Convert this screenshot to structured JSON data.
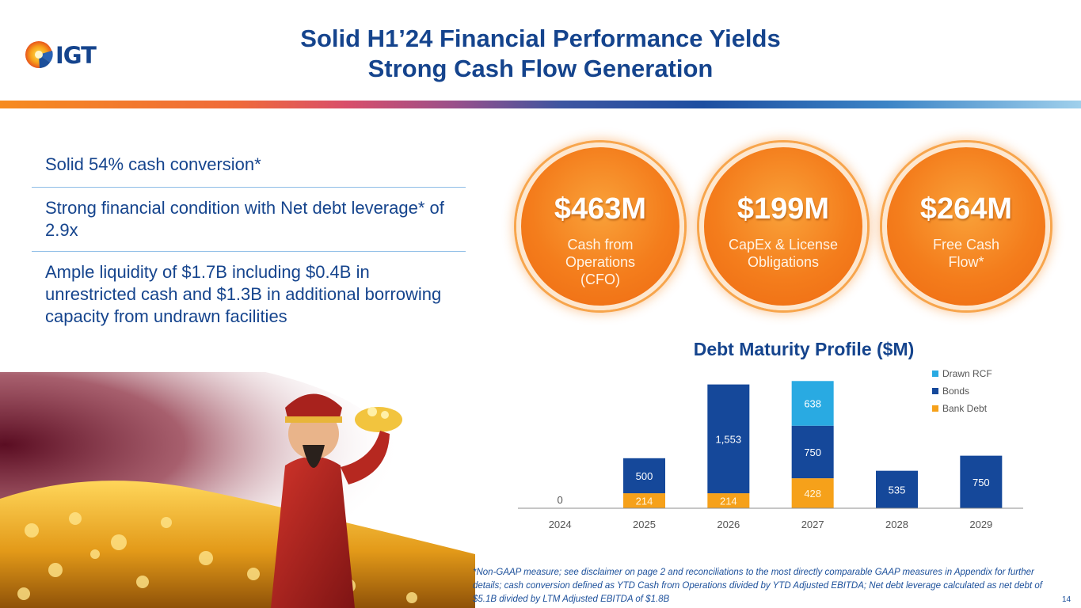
{
  "brand": {
    "logo_text": "IGT",
    "colors": {
      "navy": "#15448d",
      "blue": "#1d4ea0",
      "light_blue": "#29aae2",
      "orange": "#f6a11a",
      "accent_orange": "#f47d1c"
    }
  },
  "header": {
    "title_line1": "Solid H1’24 Financial Performance Yields",
    "title_line2": "Strong Cash Flow Generation"
  },
  "bullets": [
    "Solid 54% cash conversion*",
    "Strong financial condition with Net debt leverage* of 2.9x",
    "Ample liquidity of $1.7B including $0.4B in unrestricted cash and $1.3B in additional borrowing capacity from undrawn facilities"
  ],
  "metrics": [
    {
      "value": "$463M",
      "label": "Cash from Operations (CFO)"
    },
    {
      "value": "$199M",
      "label": "CapEx & License Obligations"
    },
    {
      "value": "$264M",
      "label": "Free Cash Flow*"
    }
  ],
  "chart_data": {
    "type": "bar",
    "stacked": true,
    "title": "Debt Maturity Profile ($M)",
    "categories": [
      "2024",
      "2025",
      "2026",
      "2027",
      "2028",
      "2029"
    ],
    "series": [
      {
        "name": "Bank Debt",
        "color": "#f6a11a",
        "values": [
          0,
          214,
          214,
          428,
          0,
          0
        ]
      },
      {
        "name": "Bonds",
        "color": "#15489a",
        "values": [
          0,
          500,
          1553,
          750,
          535,
          750
        ]
      },
      {
        "name": "Drawn RCF",
        "color": "#29aae2",
        "values": [
          0,
          0,
          0,
          638,
          0,
          0
        ]
      }
    ],
    "zero_label": "0",
    "legend_position": "top-right",
    "grid": false
  },
  "footnote": "*Non-GAAP measure; see disclaimer on page 2 and reconciliations to the most directly comparable GAAP measures in Appendix for further details; cash conversion defined as YTD Cash from Operations divided by YTD Adjusted EBITDA; Net debt leverage calculated as net debt of $5.1B divided by LTM Adjusted EBITDA of $1.8B",
  "page_number": "14"
}
